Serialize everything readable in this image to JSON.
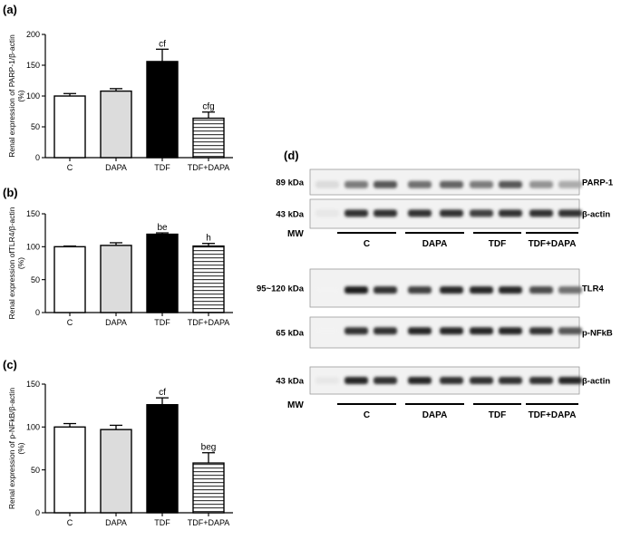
{
  "chart_data": [
    {
      "type": "bar",
      "panel": "(a)",
      "ylabel": "Renal expression of PARP-1/β-actin (%)",
      "ylabel_line1": "Renal expression of PARP-1/β-actin",
      "ylabel_line2": "(%)",
      "categories": [
        "C",
        "DAPA",
        "TDF",
        "TDF+DAPA"
      ],
      "values": [
        100,
        108,
        156,
        64
      ],
      "errors": [
        4,
        4,
        20,
        10
      ],
      "significance": [
        "",
        "",
        "cf",
        "cfg"
      ],
      "ylim": [
        0,
        200
      ],
      "yticks": [
        "0",
        "50",
        "100",
        "150",
        "200"
      ],
      "fills": [
        "white",
        "light-gray",
        "black",
        "horizontal-stripes"
      ]
    },
    {
      "type": "bar",
      "panel": "(b)",
      "ylabel": "Renal expression ofTLR4/β-actin (%)",
      "ylabel_line1": "Renal expression ofTLR4/β-actin",
      "ylabel_line2": "(%)",
      "categories": [
        "C",
        "DAPA",
        "TDF",
        "TDF+DAPA"
      ],
      "values": [
        100,
        102,
        119,
        101
      ],
      "errors": [
        1,
        4,
        2,
        4
      ],
      "significance": [
        "",
        "",
        "be",
        "h"
      ],
      "ylim": [
        0,
        150
      ],
      "yticks": [
        "0",
        "50",
        "100",
        "150"
      ],
      "fills": [
        "white",
        "light-gray",
        "black",
        "horizontal-stripes"
      ]
    },
    {
      "type": "bar",
      "panel": "(c)",
      "ylabel": "Renal expression of p-NFkB/β-actin (%)",
      "ylabel_line1": "Renal expression of p-NFkB/β-actin",
      "ylabel_line2": "(%)",
      "categories": [
        "C",
        "DAPA",
        "TDF",
        "TDF+DAPA"
      ],
      "values": [
        100,
        97,
        126,
        58
      ],
      "errors": [
        4,
        5,
        8,
        12
      ],
      "significance": [
        "",
        "",
        "cf",
        "beg"
      ],
      "ylim": [
        0,
        150
      ],
      "yticks": [
        "0",
        "50",
        "100",
        "150"
      ],
      "fills": [
        "white",
        "light-gray",
        "black",
        "horizontal-stripes"
      ]
    }
  ],
  "blots": {
    "panel": "(d)",
    "group_labels": [
      "C",
      "DAPA",
      "TDF",
      "TDF+DAPA"
    ],
    "mw_label": "MW",
    "set1": [
      {
        "kda": "89 kDa",
        "protein": "PARP-1",
        "lanes": [
          0.15,
          0.55,
          0.7,
          0.6,
          0.65,
          0.55,
          0.7,
          0.45,
          0.35
        ]
      },
      {
        "kda": "43 kDa",
        "protein": "β-actin",
        "lanes": [
          0.1,
          0.85,
          0.85,
          0.85,
          0.85,
          0.8,
          0.85,
          0.85,
          0.85
        ]
      }
    ],
    "set2": [
      {
        "kda": "95~120 kDa",
        "protein": "TLR4",
        "lanes": [
          0.05,
          0.95,
          0.85,
          0.8,
          0.9,
          0.9,
          0.9,
          0.75,
          0.6
        ]
      },
      {
        "kda": "65 kDa",
        "protein": "p-NFkB",
        "lanes": [
          0.05,
          0.85,
          0.85,
          0.9,
          0.9,
          0.9,
          0.9,
          0.85,
          0.7
        ]
      },
      {
        "kda": "43 kDa",
        "protein": "β-actin",
        "lanes": [
          0.1,
          0.9,
          0.85,
          0.9,
          0.85,
          0.85,
          0.85,
          0.85,
          0.9
        ]
      }
    ]
  }
}
